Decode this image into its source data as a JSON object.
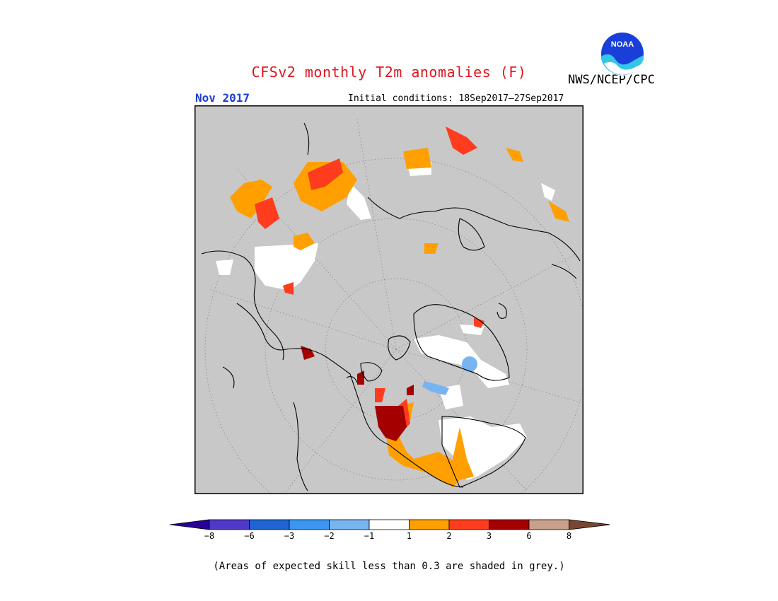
{
  "header": {
    "title": "CFSv2 monthly T2m anomalies (F)",
    "period": "Nov 2017",
    "initial_conditions": "Initial conditions: 18Sep2017–27Sep2017",
    "agency": "NWS/NCEP/CPC",
    "logo_text": "NOAA"
  },
  "colorbar": {
    "colors": [
      "#280096",
      "#5038c8",
      "#1e64d2",
      "#3c96f0",
      "#78b4f0",
      "#ffffff",
      "#ffa000",
      "#ff3c1e",
      "#a50000",
      "#c8a08c",
      "#784632"
    ],
    "labels": [
      "−8",
      "−6",
      "−3",
      "−2",
      "−1",
      "1",
      "2",
      "3",
      "6",
      "8"
    ]
  },
  "footnote": "(Areas of expected skill less than 0.3 are shaded in grey.)"
}
